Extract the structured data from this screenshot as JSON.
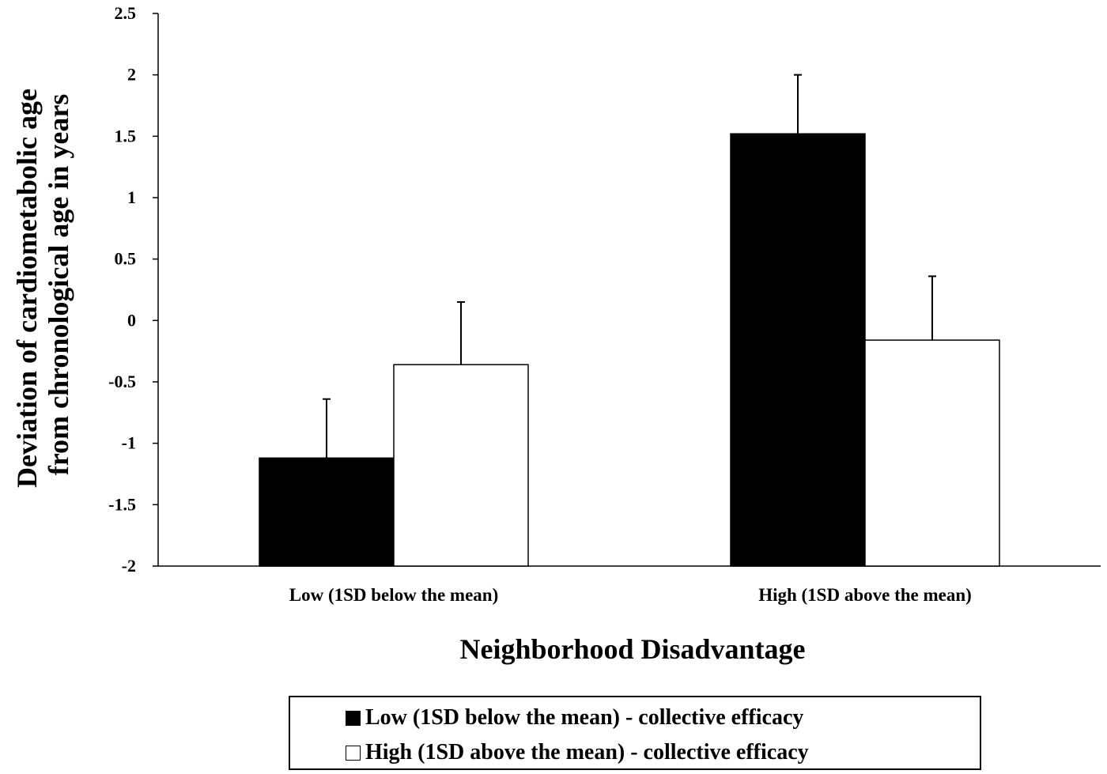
{
  "chart_data": {
    "type": "bar",
    "title": "",
    "xlabel": "Neighborhood Disadvantage",
    "ylabel_lines": [
      "Deviation of cardiometabolic  age",
      "from chronological age in years"
    ],
    "ylim": [
      -2,
      2.5
    ],
    "yticks": [
      "2.5",
      "2",
      "1.5",
      "1",
      "0.5",
      "0",
      "-0.5",
      "-1",
      "-1.5",
      "-2"
    ],
    "categories": [
      "Low (1SD below the mean)",
      "High (1SD above the mean)"
    ],
    "series": [
      {
        "name": "Low (1SD below the mean) - collective efficacy",
        "color": "#000000",
        "values": [
          -1.12,
          1.52
        ],
        "error": [
          0.48,
          0.48
        ]
      },
      {
        "name": "High (1SD above the mean) - collective efficacy",
        "color": "#ffffff",
        "values": [
          -0.36,
          -0.16
        ],
        "error": [
          0.51,
          0.52
        ]
      }
    ],
    "grid": false,
    "legend_position": "bottom"
  }
}
